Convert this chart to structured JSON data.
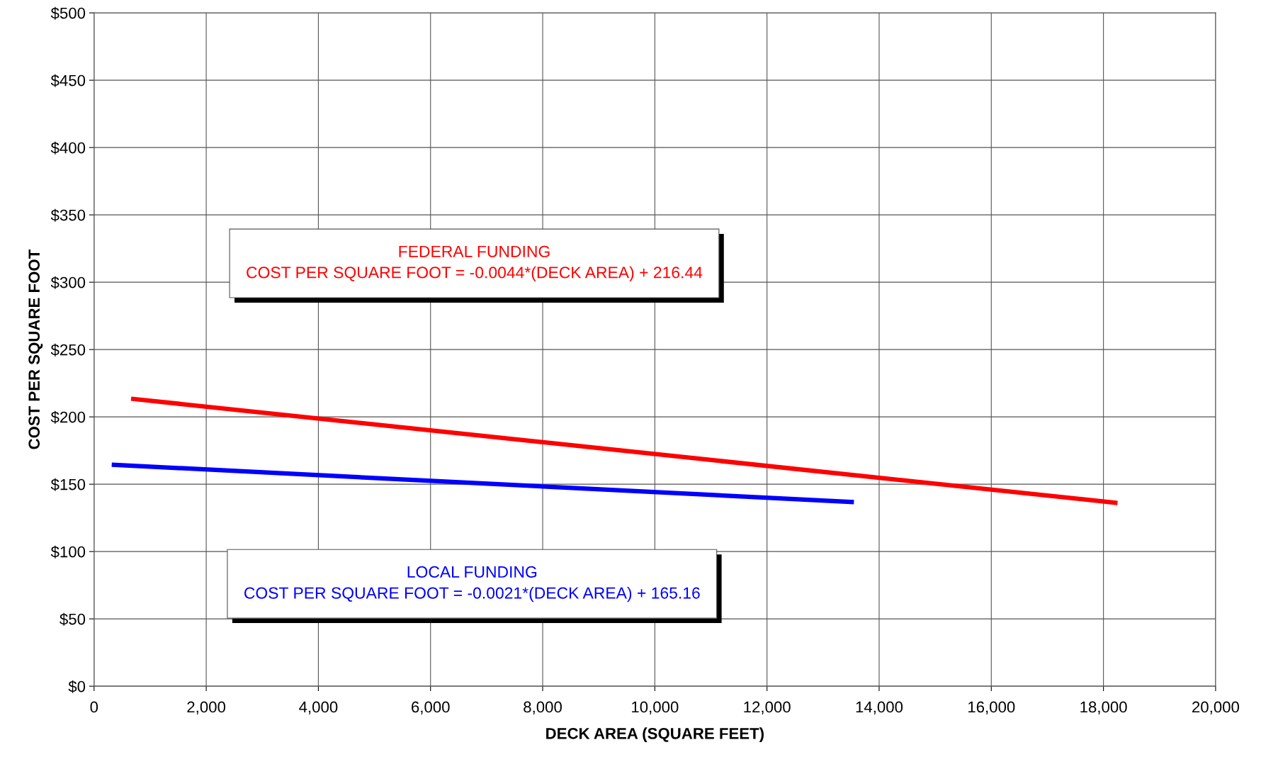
{
  "chart_data": {
    "type": "line",
    "xlabel": "DECK AREA (SQUARE FEET)",
    "ylabel": "COST PER SQUARE FOOT",
    "series": [
      {
        "color": "#ff0000",
        "x": [
          660,
          18250
        ],
        "values": [
          213.5,
          136.1
        ]
      },
      {
        "color": "#0000ff",
        "x": [
          315,
          13550
        ],
        "values": [
          164.5,
          136.7
        ]
      }
    ],
    "annotations": [
      "FEDERAL FUNDING\nCOST PER SQUARE FOOT = -0.0044*(DECK AREA) + 216.44",
      "LOCAL FUNDING\nCOST PER SQUARE FOOT = -0.0021*(DECK AREA) + 165.16"
    ],
    "xlim": [
      0,
      20000
    ],
    "ylim": [
      0,
      500
    ],
    "xticks": [
      0,
      {
        "value": 2000,
        "label": "2,000"
      },
      {
        "value": 4000,
        "label": "4,000"
      },
      {
        "value": 6000,
        "label": "6,000"
      },
      {
        "value": 8000,
        "label": "8,000"
      },
      {
        "value": 10000,
        "label": "10,000"
      },
      {
        "value": 12000,
        "label": "12,000"
      },
      {
        "value": 14000,
        "label": "14,000"
      },
      {
        "value": 16000,
        "label": "16,000"
      },
      {
        "value": 18000,
        "label": "18,000"
      },
      {
        "value": 20000,
        "label": "20,000"
      }
    ],
    "yticks": [
      {
        "value": 0,
        "label": "$0"
      },
      {
        "value": 50,
        "label": "$50"
      },
      {
        "value": 100,
        "label": "$100"
      },
      {
        "value": 150,
        "label": "$150"
      },
      {
        "value": 200,
        "label": "$200"
      },
      {
        "value": 250,
        "label": "$250"
      },
      {
        "value": 300,
        "label": "$300"
      },
      {
        "value": 350,
        "label": "$350"
      },
      {
        "value": 400,
        "label": "$400"
      },
      {
        "value": 450,
        "label": "$450"
      },
      {
        "value": 500,
        "label": "$500"
      }
    ],
    "grid": true,
    "marker": "none",
    "line_style": "solid"
  }
}
